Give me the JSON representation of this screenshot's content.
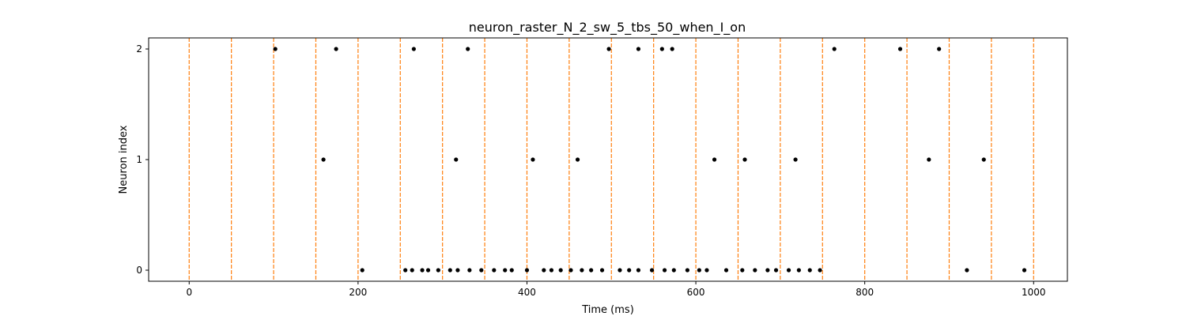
{
  "chart_data": {
    "type": "scatter",
    "title": "neuron_raster_N_2_sw_5_tbs_50_when_I_on",
    "xlabel": "Time (ms)",
    "ylabel": "Neuron index",
    "xlim": [
      -48,
      1040
    ],
    "ylim": [
      -0.1,
      2.1
    ],
    "x_ticks": [
      0,
      200,
      400,
      600,
      800,
      1000
    ],
    "y_ticks": [
      0,
      1,
      2
    ],
    "grid": false,
    "marker_color": "#000000",
    "vline_color": "#ff7f0e",
    "vline_style": "dashed",
    "vlines_x": [
      0,
      50,
      100,
      150,
      200,
      250,
      300,
      350,
      400,
      450,
      500,
      550,
      600,
      650,
      700,
      750,
      800,
      850,
      900,
      950,
      1000
    ],
    "series": [
      {
        "neuron": 0,
        "x": [
          205,
          256,
          264,
          276,
          283,
          295,
          309,
          318,
          332,
          346,
          361,
          374,
          382,
          400,
          420,
          429,
          440,
          452,
          465,
          476,
          489,
          510,
          521,
          532,
          548,
          563,
          574,
          590,
          604,
          613,
          636,
          655,
          670,
          685,
          695,
          710,
          722,
          735,
          747,
          921,
          989
        ],
        "y": [
          0,
          0,
          0,
          0,
          0,
          0,
          0,
          0,
          0,
          0,
          0,
          0,
          0,
          0,
          0,
          0,
          0,
          0,
          0,
          0,
          0,
          0,
          0,
          0,
          0,
          0,
          0,
          0,
          0,
          0,
          0,
          0,
          0,
          0,
          0,
          0,
          0,
          0,
          0,
          0,
          0
        ]
      },
      {
        "neuron": 1,
        "x": [
          159,
          316,
          407,
          460,
          622,
          658,
          718,
          876,
          941
        ],
        "y": [
          1,
          1,
          1,
          1,
          1,
          1,
          1,
          1,
          1
        ]
      },
      {
        "neuron": 2,
        "x": [
          102,
          174,
          266,
          330,
          497,
          532,
          560,
          572,
          764,
          842,
          888
        ],
        "y": [
          2,
          2,
          2,
          2,
          2,
          2,
          2,
          2,
          2,
          2,
          2
        ]
      }
    ]
  }
}
